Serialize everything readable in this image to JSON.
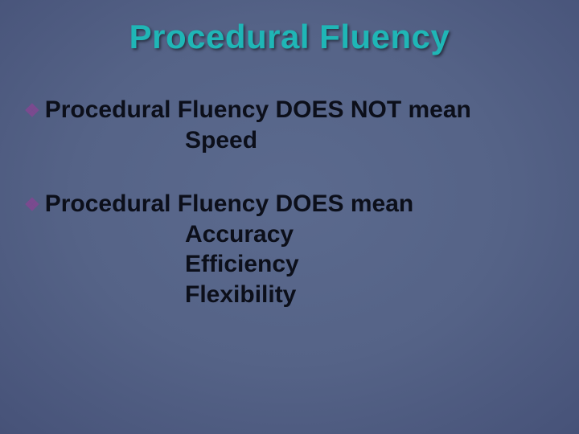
{
  "slide": {
    "title": "Procedural Fluency",
    "title_color": "#1fb6b6",
    "title_fontsize": 42,
    "background_gradient": {
      "type": "radial",
      "center_color": "#5b6a8e",
      "edge_color": "#2f3858"
    },
    "bullet_color": "#7b4a8f",
    "body_text_color": "#0c0f1a",
    "body_fontsize": 30,
    "blocks": [
      {
        "lead": "Procedural Fluency DOES NOT mean",
        "items": [
          "Speed"
        ]
      },
      {
        "lead": "Procedural Fluency DOES mean",
        "items": [
          "Accuracy",
          "Efficiency",
          "Flexibility"
        ]
      }
    ]
  }
}
